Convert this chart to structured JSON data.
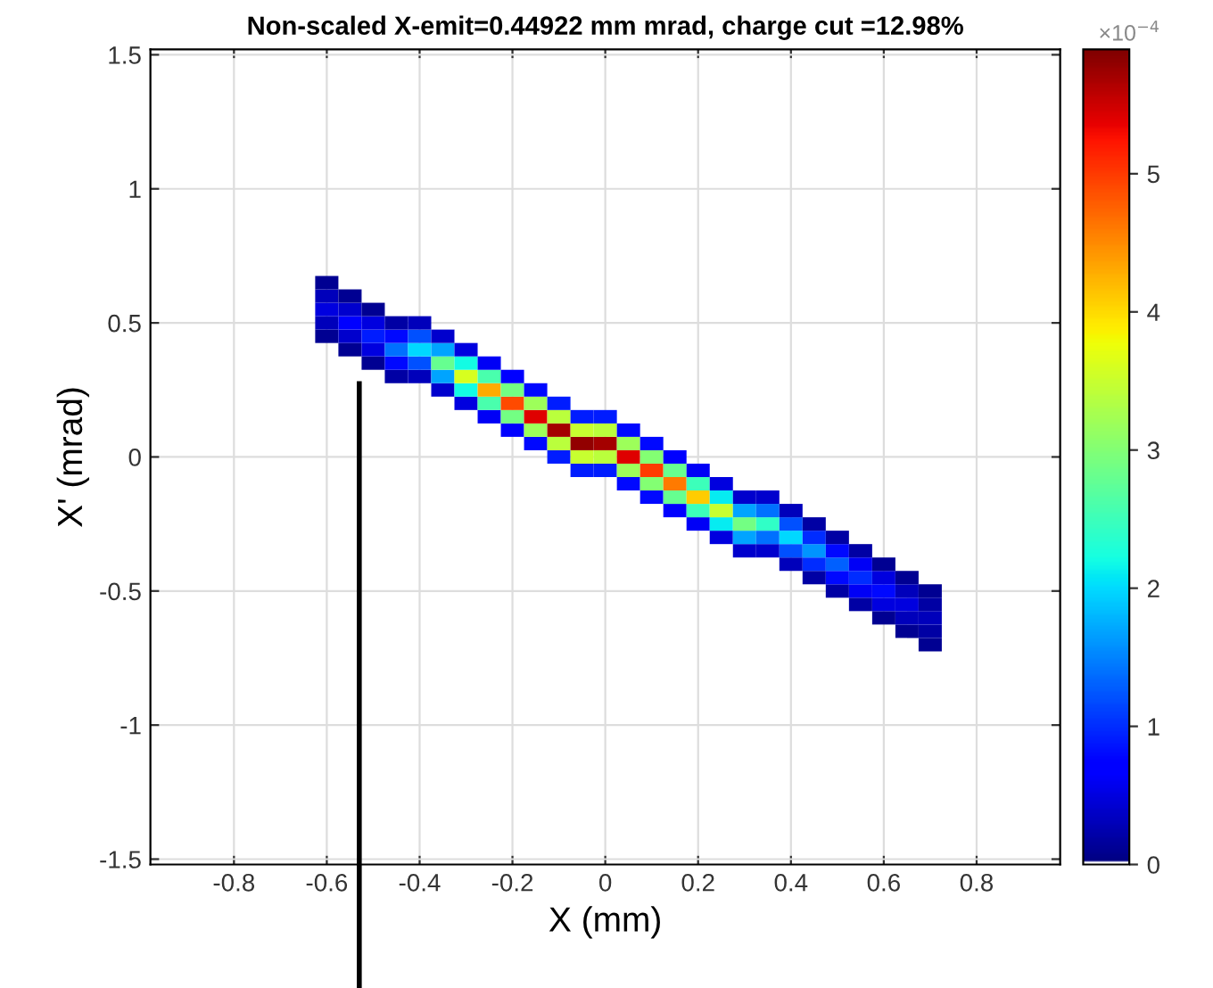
{
  "chart_data": {
    "type": "scatter",
    "title": "Non-scaled X-emit=0.44922 mm mrad, charge cut =12.98%",
    "xlabel": "X (mm)",
    "ylabel": "X' (mrad)",
    "x": [
      -0.6,
      -0.6,
      -0.6,
      -0.6,
      -0.6,
      -0.55,
      -0.55,
      -0.55,
      -0.55,
      -0.55,
      -0.5,
      -0.5,
      -0.5,
      -0.5,
      -0.5,
      -0.45,
      -0.45,
      -0.45,
      -0.45,
      -0.45,
      -0.4,
      -0.4,
      -0.4,
      -0.4,
      -0.4,
      -0.35,
      -0.35,
      -0.35,
      -0.35,
      -0.35,
      -0.3,
      -0.3,
      -0.3,
      -0.3,
      -0.3,
      -0.25,
      -0.25,
      -0.25,
      -0.25,
      -0.25,
      -0.2,
      -0.2,
      -0.2,
      -0.2,
      -0.2,
      -0.15,
      -0.15,
      -0.15,
      -0.15,
      -0.15,
      -0.1,
      -0.1,
      -0.1,
      -0.1,
      -0.1,
      -0.05,
      -0.05,
      -0.05,
      -0.05,
      -0.05,
      0,
      0,
      0,
      0,
      0,
      0.05,
      0.05,
      0.05,
      0.05,
      0.05,
      0.1,
      0.1,
      0.1,
      0.1,
      0.1,
      0.15,
      0.15,
      0.15,
      0.15,
      0.15,
      0.2,
      0.2,
      0.2,
      0.2,
      0.2,
      0.25,
      0.25,
      0.25,
      0.25,
      0.25,
      0.3,
      0.3,
      0.3,
      0.3,
      0.3,
      0.35,
      0.35,
      0.35,
      0.35,
      0.35,
      0.4,
      0.4,
      0.4,
      0.4,
      0.4,
      0.45,
      0.45,
      0.45,
      0.45,
      0.45,
      0.5,
      0.5,
      0.5,
      0.5,
      0.5,
      0.55,
      0.55,
      0.55,
      0.55,
      0.55,
      0.6,
      0.6,
      0.6,
      0.6,
      0.6,
      0.65,
      0.65,
      0.65,
      0.65,
      0.65,
      0.7,
      0.7,
      0.7,
      0.7,
      0.7
    ],
    "values": [
      0.45,
      0.5,
      0.55,
      0.6,
      0.65,
      0.4,
      0.45,
      0.5,
      0.55,
      0.6,
      0.35,
      0.4,
      0.45,
      0.5,
      0.55,
      0.3,
      0.35,
      0.4,
      0.45,
      0.5,
      0.3,
      0.35,
      0.4,
      0.45,
      0.5,
      0.25,
      0.3,
      0.35,
      0.4,
      0.45,
      0.2,
      0.25,
      0.3,
      0.35,
      0.4,
      0.15,
      0.2,
      0.25,
      0.3,
      0.35,
      0.1,
      0.15,
      0.2,
      0.25,
      0.3,
      0.05,
      0.1,
      0.15,
      0.2,
      0.25,
      0,
      0.05,
      0.1,
      0.15,
      0.2,
      -0.05,
      0,
      0.05,
      0.1,
      0.15,
      -0.05,
      0,
      0.05,
      0.1,
      0.15,
      -0.1,
      -0.05,
      0,
      0.05,
      0.1,
      -0.15,
      -0.1,
      -0.05,
      0,
      0.05,
      -0.2,
      -0.15,
      -0.1,
      -0.05,
      0,
      -0.25,
      -0.2,
      -0.15,
      -0.1,
      -0.05,
      -0.3,
      -0.25,
      -0.2,
      -0.15,
      -0.1,
      -0.35,
      -0.3,
      -0.25,
      -0.2,
      -0.15,
      -0.35,
      -0.3,
      -0.25,
      -0.2,
      -0.15,
      -0.4,
      -0.35,
      -0.3,
      -0.25,
      -0.2,
      -0.45,
      -0.4,
      -0.35,
      -0.3,
      -0.25,
      -0.5,
      -0.45,
      -0.4,
      -0.35,
      -0.3,
      -0.55,
      -0.5,
      -0.45,
      -0.4,
      -0.35,
      -0.6,
      -0.55,
      -0.5,
      -0.45,
      -0.4,
      -0.65,
      -0.6,
      -0.55,
      -0.5,
      -0.45,
      -0.7,
      -0.65,
      -0.6,
      -0.55,
      -0.5
    ],
    "cvalues": [
      0.1,
      0.3,
      0.5,
      0.3,
      0.1,
      0.1,
      0.4,
      0.7,
      0.4,
      0.1,
      0.1,
      0.5,
      0.9,
      0.5,
      0.1,
      0.2,
      0.8,
      1.4,
      0.8,
      0.2,
      0.3,
      1.2,
      2.0,
      1.2,
      0.3,
      0.4,
      1.7,
      2.8,
      1.7,
      0.4,
      0.5,
      2.2,
      3.6,
      2.2,
      0.5,
      0.6,
      2.6,
      4.3,
      2.6,
      0.6,
      0.7,
      2.9,
      4.9,
      2.9,
      0.7,
      0.8,
      3.2,
      5.4,
      3.2,
      0.8,
      0.9,
      3.4,
      5.7,
      3.4,
      0.9,
      0.9,
      3.5,
      5.8,
      3.5,
      0.9,
      0.9,
      3.4,
      5.7,
      3.4,
      0.9,
      0.8,
      3.2,
      5.4,
      3.2,
      0.8,
      0.8,
      3.0,
      5.0,
      3.0,
      0.8,
      0.7,
      2.8,
      4.6,
      2.8,
      0.7,
      0.6,
      2.5,
      4.1,
      2.5,
      0.6,
      0.5,
      2.1,
      3.5,
      2.1,
      0.5,
      0.4,
      1.7,
      2.9,
      1.7,
      0.4,
      0.4,
      1.4,
      2.4,
      1.4,
      0.4,
      0.3,
      1.2,
      2.0,
      1.2,
      0.3,
      0.2,
      1.0,
      1.6,
      1.0,
      0.2,
      0.2,
      0.8,
      1.3,
      0.8,
      0.2,
      0.2,
      0.6,
      1.0,
      0.6,
      0.2,
      0.1,
      0.5,
      0.8,
      0.5,
      0.1,
      0.1,
      0.3,
      0.5,
      0.3,
      0.1,
      0.1,
      0.2,
      0.3,
      0.2,
      0.1
    ],
    "marker": "square",
    "xlim": [
      -0.98,
      0.98
    ],
    "ylim": [
      -1.52,
      1.52
    ],
    "xticks": [
      {
        "value": -0.8,
        "label": "-0.8"
      },
      {
        "value": -0.6,
        "label": "-0.6"
      },
      {
        "value": -0.4,
        "label": "-0.4"
      },
      {
        "value": -0.2,
        "label": "-0.2"
      },
      0,
      0.2,
      0.4,
      0.6,
      0.8
    ],
    "yticks": [
      {
        "value": -1.5,
        "label": "-1.5"
      },
      {
        "value": -1,
        "label": "-1"
      },
      {
        "value": -0.5,
        "label": "-0.5"
      },
      0,
      0.5,
      1,
      1.5
    ],
    "clim": [
      0,
      5.9
    ],
    "cticks": [
      0,
      1,
      2,
      3,
      4,
      5
    ],
    "ref_lines": [
      {
        "axis": "x",
        "value": -0.53,
        "color": "#000000"
      }
    ],
    "annotations": [
      "×10$^{−4}$"
    ],
    "grid": true
  }
}
